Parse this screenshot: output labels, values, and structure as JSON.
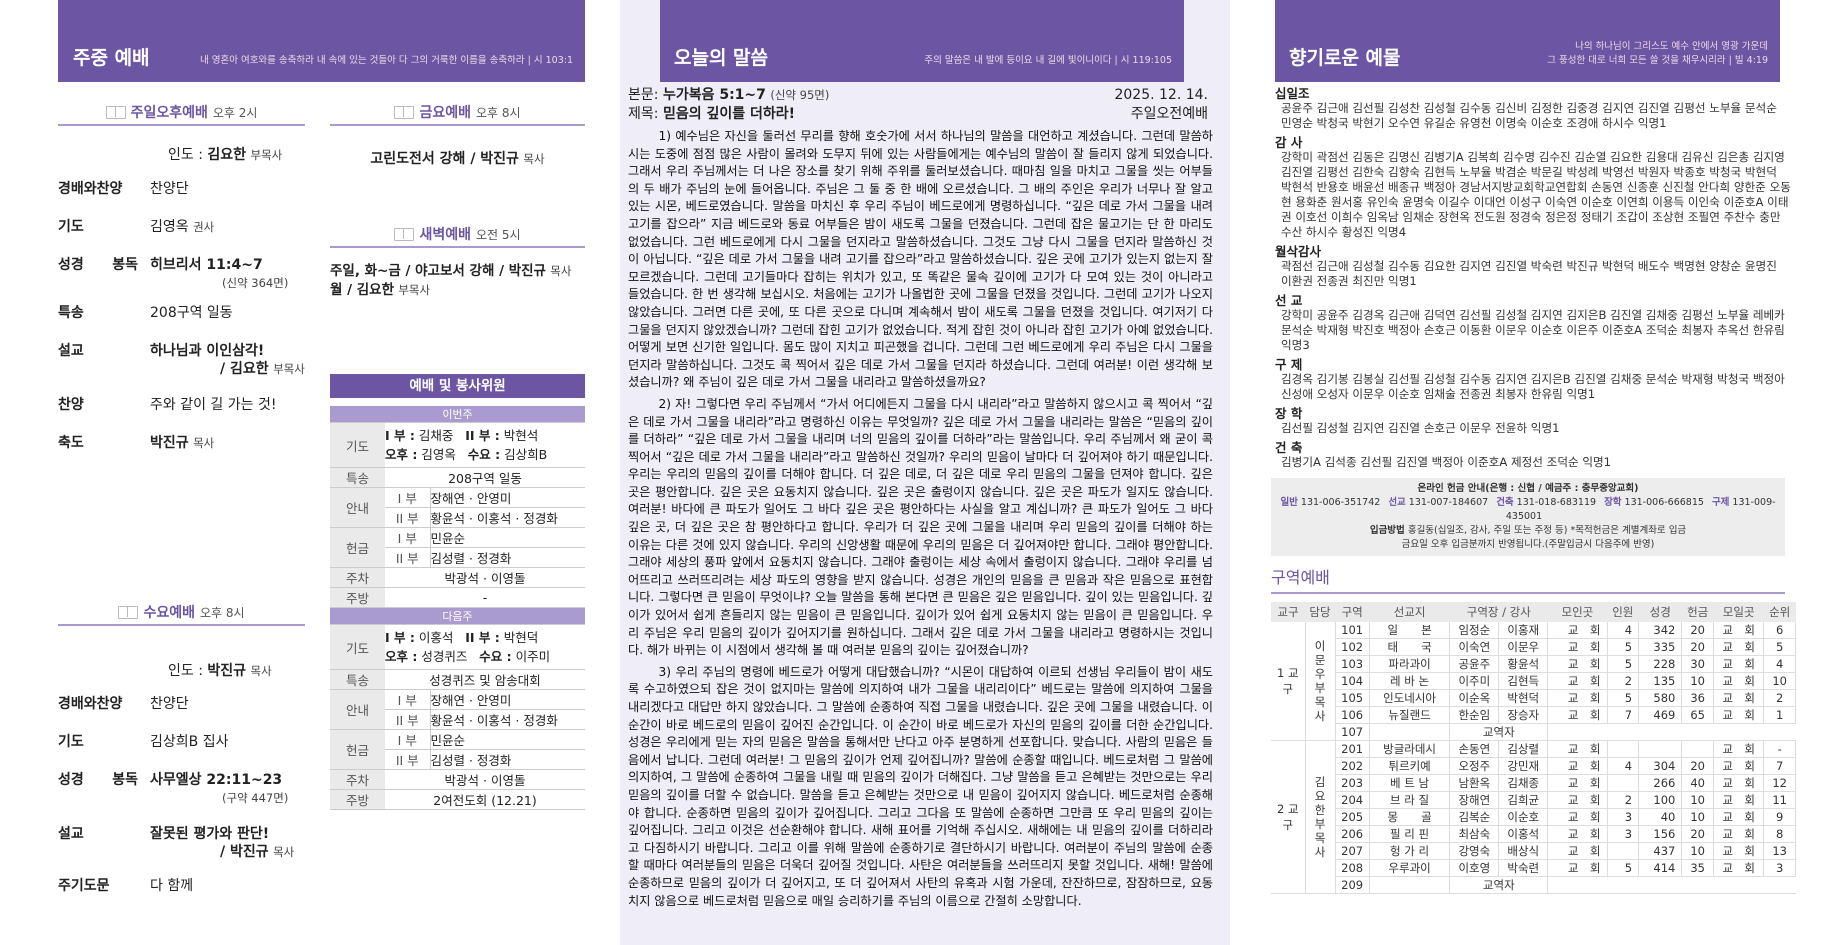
{
  "left": {
    "title": "주중 예배",
    "verse": "내 영혼아 여호와를 송축하라 내 속에 있는 것들아 다 그의 거룩한 이름을 송축하라  |  시 103:1",
    "sunday_pm": {
      "name": "주일오후예배",
      "time": "오후 2시",
      "leader_label": "인도 :",
      "leader": "김요한",
      "leader_title": "부목사",
      "items": [
        {
          "label": "경배와찬양",
          "value": "찬양단"
        },
        {
          "label": "기도",
          "value": "김영옥",
          "sub": "권사"
        },
        {
          "label": "성경 봉독",
          "value": "히브리서  11:4~7",
          "note": "(신약 364면)"
        },
        {
          "label": "특송",
          "value": "208구역 일동"
        },
        {
          "label": "설교",
          "value": "하나님과  이인삼각!",
          "note2": "/ 김요한",
          "note2_title": "부목사"
        },
        {
          "label": "찬양",
          "value": "주와 같이 길 가는 것!"
        },
        {
          "label": "축도",
          "value": "박진규",
          "sub": "목사"
        }
      ]
    },
    "wednesday": {
      "name": "수요예배",
      "time": "오후 8시",
      "leader_label": "인도 :",
      "leader": "박진규",
      "leader_title": "목사",
      "items": [
        {
          "label": "경배와찬양",
          "value": "찬양단"
        },
        {
          "label": "기도",
          "value": "김상희B 집사"
        },
        {
          "label": "성경 봉독",
          "value": "사무엘상  22:11~23",
          "note": "(구약  447면)"
        },
        {
          "label": "설교",
          "value": "잘못된  평가와  판단!",
          "note2": "/ 박진규",
          "note2_title": "목사"
        },
        {
          "label": "주기도문",
          "value": "다 함께"
        }
      ]
    },
    "friday": {
      "name": "금요예배",
      "time": "오후 8시",
      "text": "고린도전서 강해  /  박진규",
      "title": "목사"
    },
    "dawn": {
      "name": "새벽예배",
      "time": "오전 5시",
      "line1": "주일, 화~금 /  야고보서 강해  /  박진규",
      "line1_title": "목사",
      "line2": "월  /  김요한",
      "line2_title": "부목사"
    },
    "duty": {
      "title": "예배 및 봉사위원",
      "this_week": {
        "label": "이번주",
        "prayer": [
          "I 부 :",
          "김채중",
          "II 부 :",
          "박현석",
          "오후 :",
          "김영옥",
          "수요 :",
          "김상희B"
        ],
        "special": "208구역  일동",
        "guide1": "장해연 · 안영미",
        "guide2": "황윤석 · 이홍석 · 정경화",
        "offer1": "민윤순",
        "offer2": "김성렬 · 정경화",
        "parking": "박광석 · 이영돌",
        "kitchen": "-"
      },
      "next_week": {
        "label": "다음주",
        "prayer": [
          "I 부 :",
          "이홍석",
          "II 부 :",
          "박현덕",
          "오후 :",
          "성경퀴즈",
          "수요 :",
          "이주미"
        ],
        "special": "성경퀴즈  및  암송대회",
        "guide1": "장해연 · 안영미",
        "guide2": "황윤석 · 이홍석 · 정경화",
        "offer1": "민윤순",
        "offer2": "김성렬 · 정경화",
        "parking": "박광석 · 이영돌",
        "kitchen": "2여전도회 (12.21)"
      },
      "labels": {
        "prayer": "기도",
        "special": "특송",
        "guide": "안내",
        "offer": "헌금",
        "parking": "주차",
        "kitchen": "주방",
        "p1": "I 부",
        "p2": "II 부"
      }
    }
  },
  "middle": {
    "title": "오늘의 말씀",
    "verse": "주의 말씀은 내 발에 등이요 내 길에 빛이니이다  |  시 119:105",
    "text_label": "본문:",
    "text": "누가복음 5:1~7",
    "text_page": "(신약 95면)",
    "subject_label": "제목:",
    "subject": "믿음의 깊이를 더하라!",
    "date": "2025. 12. 14.",
    "service": "주일오전예배",
    "paragraphs": [
      "1) 예수님은 자신을 둘러선 무리를 향해 호숫가에 서서 하나님의 말씀을 대언하고 계셨습니다. 그런데 말씀하시는 도중에 점점 많은 사람이 몰려와 도무지 뒤에 있는 사람들에게는 예수님의 말씀이 잘 들리지 않게 되었습니다. 그래서 우리 주님께서는 더 나은 장소를 찾기 위해 주위를 둘러보셨습니다. 때마침 일을 마치고 그물을 씻는 어부들의 두 배가 주님의 눈에 들어옵니다. 주님은 그 둘 중 한 배에 오르셨습니다. 그 배의 주인은 우리가 너무나 잘 알고 있는 시몬, 베드로였습니다. 말씀을 마치신 후 우리 주님이 베드로에게 명령하십니다. “깊은 데로 가서 그물을 내려 고기를 잡으라” 지금 베드로와 동료 어부들은 밤이 새도록 그물을 던졌습니다. 그런데 잡은 물고기는 단 한 마리도 없었습니다. 그런 베드로에게 다시 그물을 던지라고 말씀하셨습니다. 그것도 그냥 다시 그물을 던지라 말씀하신 것이 아닙니다. “깊은 데로 가서 그물을 내려 고기를 잡으라”라고 말씀하셨습니다. 깊은 곳에 고기가 있는지 없는지 잘 모르겠습니다. 그런데 고기들마다 잡히는 위치가 있고, 또 똑같은 물속 깊이에 고기가 다 모여 있는 것이 아니라고 들었습니다. 한 번 생각해 보십시오. 처음에는 고기가 나올법한 곳에 그물을 던졌을 것입니다. 그런데 고기가 나오지 않았습니다. 그러면 다른 곳에, 또 다른 곳으로 다니며 계속해서 밤이 새도록 그물을 던졌을 것입니다. 여기저기 다 그물을 던지지 않았겠습니까? 그런데 잡힌 고기가 없었습니다. 적게 잡힌 것이 아니라 잡힌 고기가 아예 없었습니다. 어떻게 보면 신기한 일입니다. 몸도 많이 지치고 피곤했을 겁니다. 그런데 그런 베드로에게 우리 주님은 다시 그물을 던지라 말씀하십니다. 그것도 콕 찍어서 깊은 데로 가서 그물을 던지라 하셨습니다. 그런데 여러분! 이런 생각해 보셨습니까? 왜 주님이 깊은 데로 가서 그물을 내리라고 말씀하셨을까요?",
      "2) 자! 그렇다면 우리 주님께서 “가서 어디에든지 그물을 다시 내리라”라고 말씀하지 않으시고 콕 찍어서 “깊은 데로 가서 그물을 내리라”라고 명령하신 이유는 무엇일까? 깊은 데로 가서 그물을 내리라는 말씀은 “믿음의 깊이를 더하라” “깊은 데로 가서 그물을 내리며 너의 믿음의 깊이를 더하라”라는 말씀입니다. 우리 주님께서 왜 굳이 콕 찍어서 “깊은 데로 가서 그물을 내리라”라고 말씀하신 것일까? 우리의 믿음이 날마다 더 깊어져야 하기 때문입니다. 우리는 우리의 믿음의 깊이를 더해야 합니다. 더 깊은 데로, 더 깊은 데로 우리 믿음의 그물을 던져야 합니다. 깊은 곳은 평안합니다. 깊은 곳은 요동치지 않습니다. 깊은 곳은 출렁이지 않습니다. 깊은 곳은 파도가 일지도 않습니다. 여러분! 바다에 큰 파도가 일어도 그 바다 깊은 곳은 평안하다는 사실을 알고 계십니까? 큰 파도가 일어도 그 바다 깊은 곳, 더 깊은 곳은 참 평안하다고 합니다. 우리가 더 깊은 곳에 그물을 내리며 우리 믿음의 깊이를 더해야 하는 이유는 다른 것에 있지 않습니다. 우리의 신앙생활 때문에 우리의 믿음은 더 깊어져야만 합니다. 그래야 평안합니다. 그래야 세상의 풍파 앞에서 요동치지 않습니다. 그래야 출렁이는 세상 속에서 출렁이지 않습니다. 그래야 우리를 넘어뜨리고 쓰러뜨리려는 세상 파도의 영향을 받지 않습니다. 성경은 개인의 믿음을 큰 믿음과 작은 믿음으로 표현합니다. 그렇다면 큰 믿음이 무엇이냐? 오늘 말씀을 통해 본다면 큰 믿음은 깊은 믿음입니다. 깊이 있는 믿음입니다. 깊이가 있어서 쉽게 흔들리지 않는 믿음이 큰 믿음입니다. 깊이가 있어 쉽게 요동치지 않는 믿음이 큰 믿음입니다. 우리 주님은 우리 믿음의 깊이가 깊어지기를 원하십니다. 그래서 깊은 데로 가서 그물을 내리라고 명령하시는 것입니다. 해가 바뀌는 이 시점에서 생각해 볼 때 여러분 믿음의 깊이는 깊어졌습니까?",
      "3) 우리 주님의 명령에 베드로가 어떻게 대답했습니까? “시몬이 대답하여 이르되 선생님 우리들이 밤이 새도록 수고하였으되 잡은 것이 없지마는 말씀에 의지하여 내가 그물을 내리리이다” 베드로는 말씀에 의지하여 그물을 내리겠다고 대답만 하지 않았습니다. 그 말씀에 순종하여 직접 그물을 내렸습니다. 깊은 곳에 그물을 내렸습니다. 이 순간이 바로 베드로의 믿음이 깊어진 순간입니다. 이 순간이 바로 베드로가 자신의 믿음의 깊이를 더한 순간입니다. 성경은 우리에게 믿는 자의 믿음은 말씀을 통해서만 난다고 아주 분명하게 선포합니다. 맞습니다. 사람의 믿음은 들음에서 납니다. 그런데 여러분! 그 믿음의 깊이가 언제 깊어집니까? 말씀에 순종할 때입니다. 베드로처럼 그 말씀에 의지하여, 그 말씀에 순종하여 그물을 내릴 때 믿음의 깊이가 더해집다. 그냥 말씀을 듣고 은혜받는 것만으로는 우리 믿음의 깊이를 더할 수 없습니다. 말씀을 듣고 은혜받는 것만으로 내 믿음이 깊어지지 않습니다. 베드로처럼 순종해야 합니다. 순종하면 믿음의 깊이가 깊어집니다. 그리고 그다음 또 말씀에 순종하면 그만큼 또 우리 믿음의 깊이는 깊어집니다. 그리고 이것은 선순환해야 합니다. 새해 표어를 기억해 주십시오. 새해에는 내 믿음의 깊이를 더하리라고 다짐하시기 바랍니다. 그리고 이를 위해 말씀에 순종하기로 결단하시기 바랍니다. 여러분이 주님의 말씀에 순종할 때마다 여러분들의 믿음은 더욱더 깊어질 것입니다. 사탄은 여러분들을 쓰러뜨리지 못할 것입니다. 새해! 말씀에 순종하므로 믿음의 깊이가 더 깊어지고, 또 더 깊어져서 사탄의 유혹과 시험 가운데, 잔잔하므로, 잠잠하므로, 요동치지 않음으로 베드로처럼 믿음으로 매일 승리하기를 주님의 이름으로 간절히 소망합니다."
    ]
  },
  "right": {
    "title": "향기로운 예물",
    "verse1": "나의 하나님이 그리스도 예수 안에서 영광 가운데",
    "verse2": "그 풍성한 대로 너희 모든 쓸 것을 채우시리라  |  빌 4:19",
    "offerings": [
      {
        "name": "십일조",
        "list": "공윤주 김근애 김선필 김성찬 김성철 김수동 김신비 김정한 김중경 김지연 김진열 김평선 노부율 문석순 민영순 박청국 박현기 오수연 유길순 유영천 이명숙 이순호 조경애 하시수 익명1"
      },
      {
        "name": "감  사",
        "list": "강학미 곽점선 김동은 김명신 김병기A 김복희 김수명 김수진 김순열 김요한 김용대 김유신 김은총 김지영 김진열 김평선 김한숙 김향숙 김현득 노부율 박겸순 박문길 박성례 박영선 박원자 박종호 박청국 박현덕 박현석 반용호 배윤선 배종규 백정아 경남서지방교회학교연합회 손동연 신종훈 신진철 안다희 양한준 오동현 용화춘 원서홍 유인숙 윤명숙 이길수 이대언 이성구 이숙연 이순호 이연희 이용득 이인숙 이준호A 이태권 이호선 이희수 임옥남 임채순 장현옥 전도원 정경숙 정은정 정태기 조갑이 조상현 조필연 주찬수 충만수산 하시수 황성진 익명4"
      },
      {
        "name": "월삭감사",
        "list": "곽점선 김근애 김성철 김수동 김요한 김지연 김진열 박숙련 박진규 박현덕 배도수 백명현 양창순 윤명진 이환권 전종권 최진만 익명1"
      },
      {
        "name": "선  교",
        "list": "강학미 공윤주 김경옥 김근애 김덕연 김선필 김성철 김지연 김지은B 김진열 김채중 김평선 노부율 레베카 문석순 박재형 박진호 백정아 손호근 이동환 이문우 이순호 이은주 이준호A 조덕순 최봉자 추옥선 한유림 익명3"
      },
      {
        "name": "구  제",
        "list": "김경옥 김기봉 김봉실 김선필 김성철 김수동 김지연 김지은B 김진열 김채중 문석순 박재형 박청국 백정아 신성애 오성자 이문우 이순호 임채술 전종권 최봉자 한유림 익명1"
      },
      {
        "name": "장  학",
        "list": "김선필 김성철 김지연 김진열 손호근 이문우 전윤하 익명1"
      },
      {
        "name": "건  축",
        "list": "김병기A 김석종 김선필 김진열 백정아 이준호A 제정선 조덕순 익명1"
      }
    ],
    "bank": {
      "title": "온라인 헌금 안내(은행 : 신협 / 예금주 : 충무중앙교회)",
      "accounts": [
        {
          "k": "일반",
          "v": "131-006-351742"
        },
        {
          "k": "선교",
          "v": "131-007-184607"
        },
        {
          "k": "건축",
          "v": "131-018-683119"
        },
        {
          "k": "장학",
          "v": "131-006-666815"
        },
        {
          "k": "구제",
          "v": "131-009-435001"
        }
      ],
      "method_label": "입금방법",
      "method": "홍길동(십일조, 감사, 주일 또는 주정 등) *목적헌금은 계별계좌로 입금",
      "note": "금요일 오후 입금분까지 반영됩니다.(주말입금시 다음주에 반영)"
    },
    "zone": {
      "title": "구역예배",
      "headers": [
        "교구",
        "담당",
        "구역",
        "선교지",
        "구역장 / 강사",
        "모인곳",
        "인원",
        "성경",
        "헌금",
        "모일곳",
        "순위"
      ],
      "groups": [
        {
          "district": "1 교 구",
          "leader": "이 문 우  부 목 사",
          "rows": [
            [
              "101",
              "일　　본",
              "임정순",
              "이홍재",
              "교　회",
              "4",
              "342",
              "20",
              "교　회",
              "6"
            ],
            [
              "102",
              "태　　국",
              "이숙연",
              "이문우",
              "교　회",
              "5",
              "335",
              "20",
              "교　회",
              "5"
            ],
            [
              "103",
              "파라과이",
              "공윤주",
              "황윤석",
              "교　회",
              "5",
              "228",
              "30",
              "교　회",
              "4"
            ],
            [
              "104",
              "레 바 논",
              "이주미",
              "김현득",
              "교　회",
              "2",
              "135",
              "10",
              "교　회",
              "10"
            ],
            [
              "105",
              "인도네시아",
              "이순옥",
              "박현덕",
              "교　회",
              "5",
              "580",
              "36",
              "교　회",
              "2"
            ],
            [
              "106",
              "뉴질랜드",
              "한순임",
              "장승자",
              "교　회",
              "7",
              "469",
              "65",
              "교　회",
              "1"
            ],
            [
              "107",
              "",
              "교역자"
            ]
          ]
        },
        {
          "district": "2 교 구",
          "leader": "김 요 한  부 목 사",
          "rows": [
            [
              "201",
              "방글라데시",
              "손동연",
              "김상렬",
              "교　회",
              "",
              "",
              "",
              "교　회",
              "-"
            ],
            [
              "202",
              "튀르키예",
              "오정주",
              "강민재",
              "교　회",
              "4",
              "304",
              "20",
              "교　회",
              "7"
            ],
            [
              "203",
              "베 트 남",
              "남환옥",
              "김채종",
              "교　회",
              "",
              "266",
              "40",
              "교　회",
              "12"
            ],
            [
              "204",
              "브 라 질",
              "장해연",
              "김희균",
              "교　회",
              "2",
              "100",
              "10",
              "교　회",
              "11"
            ],
            [
              "205",
              "몽　　골",
              "김복순",
              "이순호",
              "교　회",
              "3",
              "40",
              "10",
              "교　회",
              "9"
            ],
            [
              "206",
              "필 리 핀",
              "최삼숙",
              "이홍석",
              "교　회",
              "3",
              "156",
              "20",
              "교　회",
              "8"
            ],
            [
              "207",
              "헝 가 리",
              "강영숙",
              "배상식",
              "교　회",
              "",
              "437",
              "10",
              "교　회",
              "13"
            ],
            [
              "208",
              "우루과이",
              "이호영",
              "박숙련",
              "교　회",
              "5",
              "414",
              "35",
              "교　회",
              "3"
            ],
            [
              "209",
              "",
              "교역자"
            ]
          ]
        }
      ]
    }
  },
  "colors": {
    "header": "#6c56a4",
    "accent_line": "#a99bd0",
    "sermon_bg": "#efeef8"
  }
}
